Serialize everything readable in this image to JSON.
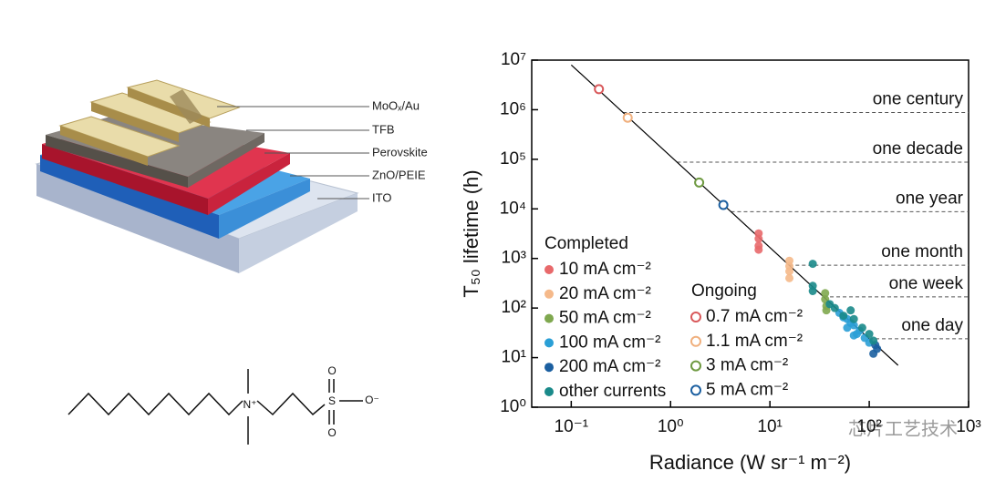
{
  "illustration": {
    "layers": [
      "MoOₓ/Au",
      "TFB",
      "Perovskite",
      "ZnO/PEIE",
      "ITO"
    ],
    "molecule_atoms": {
      "n": "N⁺",
      "s": "S",
      "o_top": "O",
      "o_bottom": "O",
      "o_right": "O⁻"
    }
  },
  "chart_data": {
    "type": "scatter",
    "x_label": "Radiance (W sr⁻¹ m⁻²)",
    "y_label": "T₅₀ lifetime (h)",
    "xscale": "log",
    "yscale": "log",
    "xlim": [
      0.04,
      1000
    ],
    "ylim": [
      1,
      10000000
    ],
    "xticks": [
      {
        "value": 0.1,
        "label": "10⁻¹"
      },
      {
        "value": 1,
        "label": "10⁰"
      },
      {
        "value": 10,
        "label": "10¹"
      },
      {
        "value": 100,
        "label": "10²"
      },
      {
        "value": 1000,
        "label": "10³"
      }
    ],
    "yticks": [
      {
        "value": 1,
        "label": "10⁰"
      },
      {
        "value": 10,
        "label": "10¹"
      },
      {
        "value": 100,
        "label": "10²"
      },
      {
        "value": 1000,
        "label": "10³"
      },
      {
        "value": 10000,
        "label": "10⁴"
      },
      {
        "value": 100000,
        "label": "10⁵"
      },
      {
        "value": 1000000,
        "label": "10⁶"
      },
      {
        "value": 10000000,
        "label": "10⁷"
      }
    ],
    "series_groups": [
      {
        "title": "Completed",
        "filled": true,
        "series": [
          {
            "name": "10 mA cm⁻²",
            "color": "#e8696b",
            "x": [
              7.7,
              7.7,
              7.7,
              7.7
            ],
            "values": [
              3200,
              2500,
              1800,
              1500
            ]
          },
          {
            "name": "20 mA cm⁻²",
            "color": "#f5b98a",
            "x": [
              15.7,
              15.7,
              15.7,
              15.7
            ],
            "values": [
              900,
              700,
              550,
              400
            ]
          },
          {
            "name": "50 mA cm⁻²",
            "color": "#7fa84f",
            "x": [
              36,
              36,
              37,
              37
            ],
            "values": [
              200,
              150,
              110,
              90
            ]
          },
          {
            "name": "100 mA cm⁻²",
            "color": "#2a9fd6",
            "x": [
              50,
              55,
              60,
              65,
              70,
              75,
              80,
              90,
              100,
              60,
              70
            ],
            "values": [
              80,
              65,
              60,
              50,
              45,
              30,
              35,
              25,
              20,
              40,
              28
            ]
          },
          {
            "name": "200 mA cm⁻²",
            "color": "#1b5fa0",
            "x": [
              110,
              115,
              120
            ],
            "values": [
              12,
              18,
              15
            ]
          },
          {
            "name": "other currents",
            "color": "#1a8a8a",
            "x": [
              27,
              27,
              27,
              40,
              45,
              55,
              65,
              70,
              85,
              100,
              110
            ],
            "values": [
              780,
              280,
              220,
              120,
              100,
              70,
              90,
              60,
              40,
              30,
              22
            ]
          }
        ]
      },
      {
        "title": "Ongoing",
        "filled": false,
        "series": [
          {
            "name": "0.7 mA cm⁻²",
            "color": "#d9595b",
            "x": [
              0.19
            ],
            "values": [
              2600000
            ]
          },
          {
            "name": "1.1 mA cm⁻²",
            "color": "#f0b07e",
            "x": [
              0.37
            ],
            "values": [
              690000
            ]
          },
          {
            "name": "3 mA cm⁻²",
            "color": "#6f9a42",
            "x": [
              1.94
            ],
            "values": [
              34000
            ]
          },
          {
            "name": "5 mA cm⁻²",
            "color": "#1b5fa0",
            "x": [
              3.4
            ],
            "values": [
              12000
            ]
          }
        ]
      }
    ],
    "fit_line": {
      "color": "#000000",
      "x": [
        0.1,
        195
      ],
      "values": [
        8000000,
        7
      ]
    },
    "annotations": [
      {
        "text": "one century",
        "value": 876000
      },
      {
        "text": "one decade",
        "value": 87600
      },
      {
        "text": "one year",
        "value": 8760
      },
      {
        "text": "one month",
        "value": 730
      },
      {
        "text": "one week",
        "value": 168
      },
      {
        "text": "one day",
        "value": 24
      }
    ]
  },
  "watermark": "芯片工艺技术"
}
